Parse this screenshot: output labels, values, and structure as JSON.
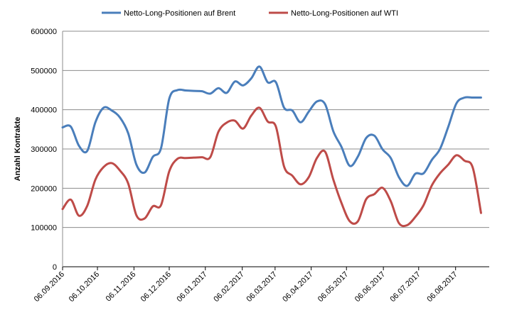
{
  "chart_data": {
    "type": "line",
    "title": "",
    "xlabel": "",
    "ylabel": "Anzahl Kontrakte",
    "ylim": [
      0,
      600000
    ],
    "y_ticks": [
      "0",
      "100000",
      "200000",
      "300000",
      "400000",
      "500000",
      "600000"
    ],
    "x_tick_labels": [
      "06.09.2016",
      "06.10.2016",
      "06.11.2016",
      "06.12.2016",
      "06.01.2017",
      "06.02.2017",
      "06.03.2017",
      "06.04.2017",
      "06.05.2017",
      "06.06.2017",
      "06.07.2017",
      "06.08.2017"
    ],
    "x_tick_weeks": [
      0,
      4.25,
      8.7,
      13,
      17.4,
      21.9,
      25.9,
      30.3,
      34.6,
      39.1,
      43.4,
      47.9
    ],
    "grid": "horizontal",
    "legend_position": "top",
    "weeks": 52,
    "series": [
      {
        "name": "Netto-Long-Positionen auf Brent",
        "color": "#4a7ebb",
        "values": [
          355000,
          357000,
          308000,
          295000,
          368000,
          405000,
          398000,
          380000,
          340000,
          260000,
          240000,
          280000,
          302000,
          428000,
          450000,
          449000,
          448000,
          447000,
          441000,
          455000,
          443000,
          472000,
          462000,
          480000,
          510000,
          470000,
          470000,
          405000,
          398000,
          368000,
          395000,
          421000,
          414000,
          345000,
          305000,
          257000,
          281000,
          328000,
          334000,
          299000,
          277000,
          228000,
          206000,
          237000,
          238000,
          272000,
          300000,
          356000,
          416000,
          431000,
          431000,
          431000
        ]
      },
      {
        "name": "Netto-Long-Positionen auf WTI",
        "color": "#be4b48",
        "values": [
          147000,
          171000,
          130000,
          155000,
          222000,
          254000,
          264000,
          245000,
          212000,
          131000,
          123000,
          154000,
          157000,
          243000,
          275000,
          277000,
          278000,
          279000,
          279000,
          344000,
          367000,
          372000,
          352000,
          385000,
          405000,
          370000,
          357000,
          255000,
          232000,
          210000,
          228000,
          277000,
          293000,
          222000,
          162000,
          116000,
          116000,
          172000,
          185000,
          201000,
          167000,
          111000,
          106000,
          127000,
          157000,
          207000,
          238000,
          260000,
          284000,
          270000,
          252000,
          137000
        ]
      }
    ]
  }
}
